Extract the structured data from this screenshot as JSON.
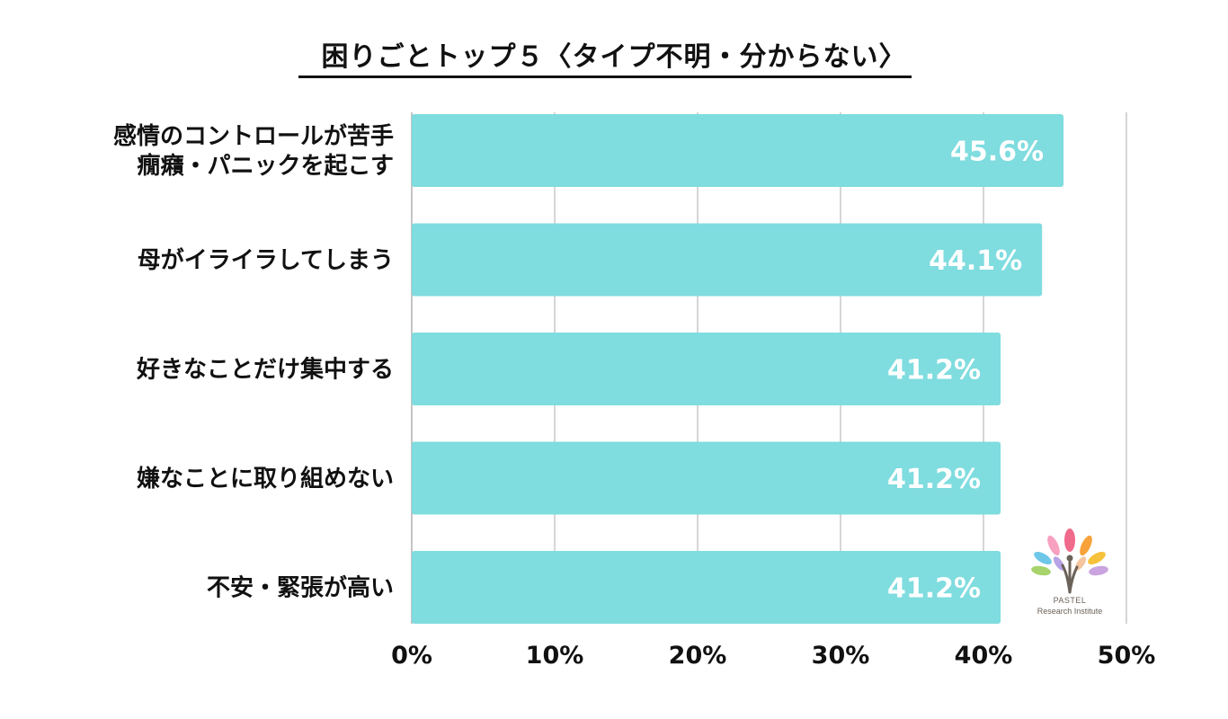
{
  "chart_data": {
    "type": "bar",
    "orientation": "horizontal",
    "title": "困りごとトップ５〈タイプ不明・分からない〉",
    "categories": [
      [
        "感情のコントロールが苦手",
        "癇癪・パニックを起こす"
      ],
      [
        "母がイライラしてしまう"
      ],
      [
        "好きなことだけ集中する"
      ],
      [
        "嫌なことに取り組めない"
      ],
      [
        "不安・緊張が高い"
      ]
    ],
    "values": [
      45.6,
      44.1,
      41.2,
      41.2,
      41.2
    ],
    "value_labels": [
      "45.6%",
      "44.1%",
      "41.2%",
      "41.2%",
      "41.2%"
    ],
    "xlim": [
      0,
      50
    ],
    "ticks": [
      0,
      10,
      20,
      30,
      40,
      50
    ],
    "tick_labels": [
      "0%",
      "10%",
      "20%",
      "30%",
      "40%",
      "50%"
    ],
    "grid": true,
    "colors": {
      "bar": "#7fdcdf",
      "grid": "#c8c8c8",
      "value_text": "#ffffff",
      "label_text": "#111111"
    }
  },
  "logo": {
    "name": "PASTEL",
    "subtitle": "Research Institute"
  }
}
